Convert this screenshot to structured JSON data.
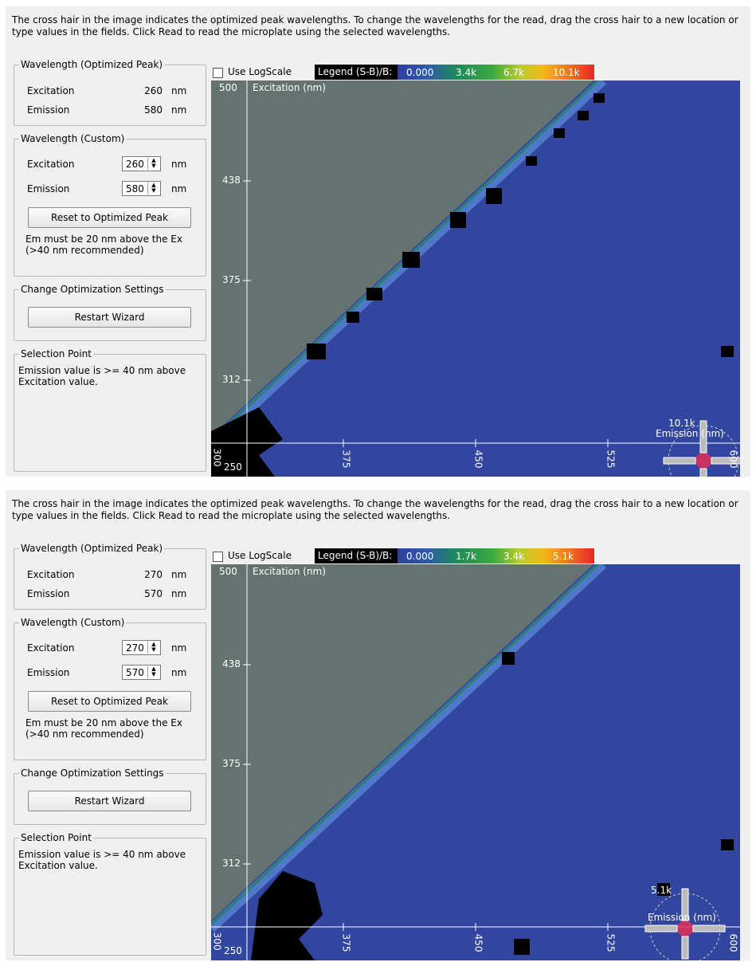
{
  "panels": [
    {
      "instructions": "The cross hair in the image indicates the optimized peak wavelengths. To change the wavelengths for the read, drag the cross hair to a new location or type values in the fields. Click Read to read the microplate using the selected wavelengths.",
      "optimized": {
        "title": "Wavelength (Optimized Peak)",
        "excitation_label": "Excitation",
        "excitation_value": "260",
        "excitation_unit": "nm",
        "emission_label": "Emission",
        "emission_value": "580",
        "emission_unit": "nm"
      },
      "custom": {
        "title": "Wavelength (Custom)",
        "excitation_label": "Excitation",
        "excitation_value": "260",
        "excitation_unit": "nm",
        "emission_label": "Emission",
        "emission_value": "580",
        "emission_unit": "nm",
        "reset_label": "Reset to Optimized Peak",
        "note": "Em must be 20 nm above the Ex (>40 nm recommended)"
      },
      "change": {
        "title": "Change Optimization Settings",
        "restart_label": "Restart Wizard"
      },
      "selection": {
        "title": "Selection Point",
        "text": "Emission value is >= 40 nm above Excitation value."
      },
      "plot": {
        "use_logscale_label": "Use LogScale",
        "legend_title": "Legend (S-B)/B:",
        "legend_ticks": [
          "0.000",
          "3.4k",
          "6.7k",
          "10.1k"
        ],
        "y_axis_label": "Excitation (nm)",
        "x_axis_label": "Emission (nm)",
        "y_ticks": [
          "500",
          "438",
          "375",
          "312",
          "250"
        ],
        "x_ticks": [
          "300",
          "375",
          "450",
          "525",
          "600"
        ],
        "peak_label": "10.1k"
      }
    },
    {
      "instructions": "The cross hair in the image indicates the optimized peak wavelengths. To change the wavelengths for the read, drag the cross hair to a new location or type values in the fields. Click Read to read the microplate using the selected wavelengths.",
      "optimized": {
        "title": "Wavelength (Optimized Peak)",
        "excitation_label": "Excitation",
        "excitation_value": "270",
        "excitation_unit": "nm",
        "emission_label": "Emission",
        "emission_value": "570",
        "emission_unit": "nm"
      },
      "custom": {
        "title": "Wavelength (Custom)",
        "excitation_label": "Excitation",
        "excitation_value": "270",
        "excitation_unit": "nm",
        "emission_label": "Emission",
        "emission_value": "570",
        "emission_unit": "nm",
        "reset_label": "Reset to Optimized Peak",
        "note": "Em must be 20 nm above the Ex (>40 nm recommended)"
      },
      "change": {
        "title": "Change Optimization Settings",
        "restart_label": "Restart Wizard"
      },
      "selection": {
        "title": "Selection Point",
        "text": "Emission value is >= 40 nm above Excitation value."
      },
      "plot": {
        "use_logscale_label": "Use LogScale",
        "legend_title": "Legend (S-B)/B:",
        "legend_ticks": [
          "0.000",
          "1.7k",
          "3.4k",
          "5.1k"
        ],
        "y_axis_label": "Excitation (nm)",
        "x_axis_label": "Emission (nm)",
        "y_ticks": [
          "500",
          "438",
          "375",
          "312",
          "250"
        ],
        "x_ticks": [
          "300",
          "375",
          "450",
          "525",
          "600"
        ],
        "peak_label": "5.1k"
      }
    }
  ],
  "colors": {
    "masked_region": "#657370",
    "signal_background": "#3246a0",
    "diagonal_band": "#4f78c8",
    "no_signal": "#000000",
    "peak": "#e0305a"
  },
  "icons": {
    "crosshair": "crosshair-icon",
    "spinner": "spinner-arrows-icon"
  }
}
